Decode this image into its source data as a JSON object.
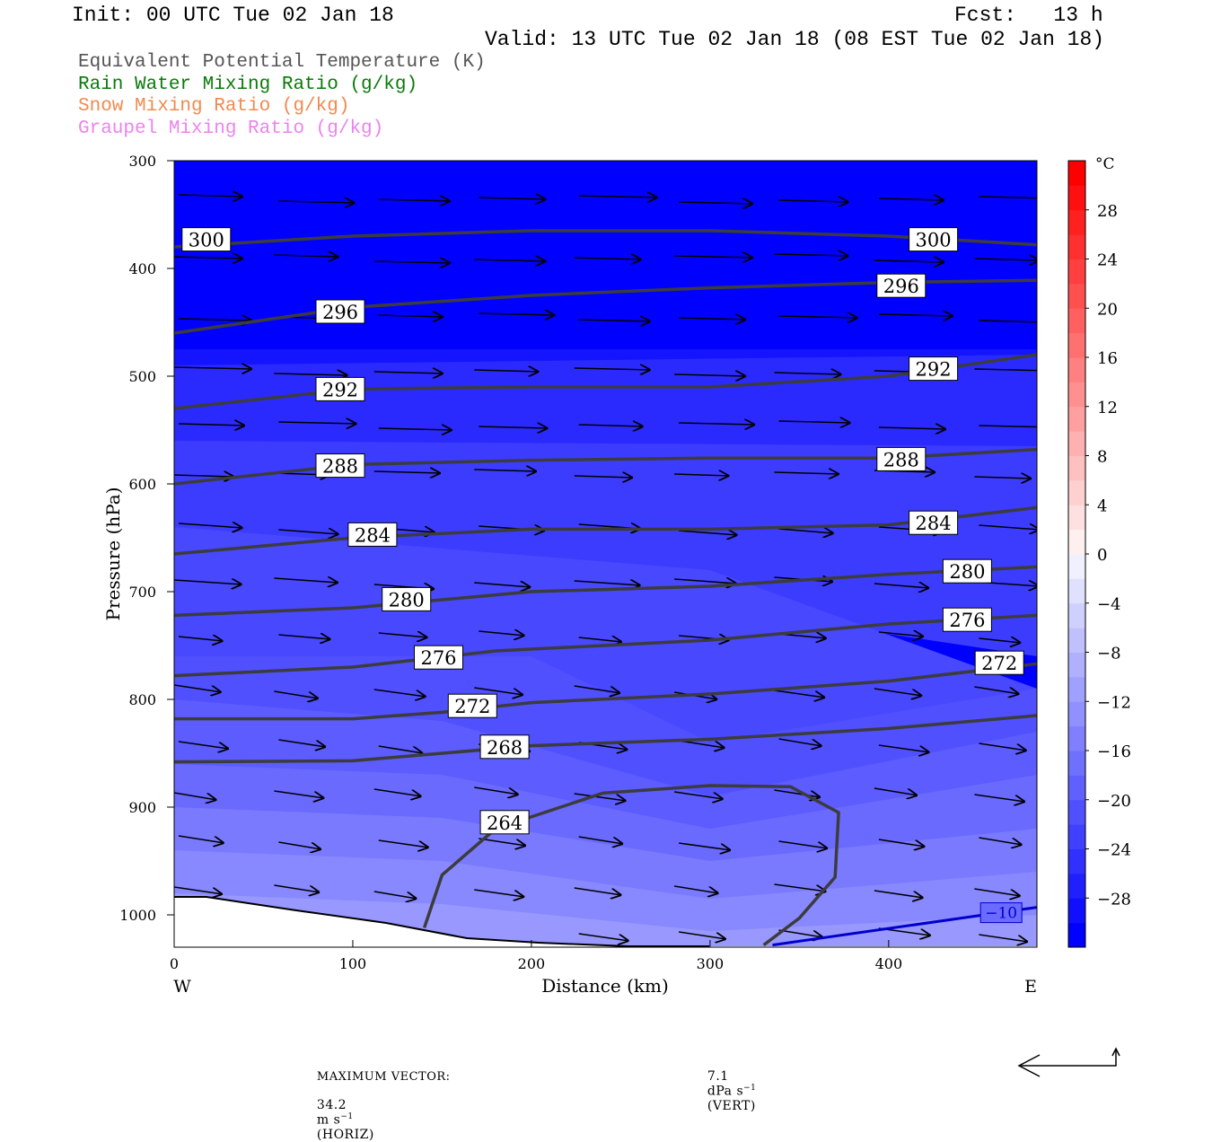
{
  "header": {
    "init": "Init: 00 UTC Tue 02 Jan 18",
    "fcst": "Fcst:   13 h",
    "valid": "Valid: 13 UTC Tue 02 Jan 18 (08 EST Tue 02 Jan 18)"
  },
  "legend": [
    {
      "label": "Equivalent Potential Temperature (K)",
      "color": "#555555"
    },
    {
      "label": "Rain Water Mixing Ratio (g/kg)",
      "color": "#0a7a0a"
    },
    {
      "label": "Snow Mixing Ratio (g/kg)",
      "color": "#f08a50"
    },
    {
      "label": "Graupel Mixing Ratio (g/kg)",
      "color": "#ee82ee"
    }
  ],
  "chart_data": {
    "type": "cross-section",
    "xlabel": "Distance (km)",
    "ylabel": "Pressure (hPa)",
    "xlim": [
      0,
      483
    ],
    "ylim": [
      1030,
      300
    ],
    "x_ticks": [
      0,
      100,
      200,
      300,
      400
    ],
    "y_ticks": [
      300,
      400,
      500,
      600,
      700,
      800,
      900,
      1000
    ],
    "x_end_labels": {
      "left": "W",
      "right": "E"
    },
    "colorbar": {
      "unit": "°C",
      "tick_labels": [
        "28",
        "24",
        "20",
        "16",
        "12",
        "8",
        "4",
        "0",
        "−4",
        "−8",
        "−12",
        "−16",
        "−20",
        "−24",
        "−28"
      ],
      "levels": [
        -32,
        -30,
        -28,
        -26,
        -24,
        -22,
        -20,
        -18,
        -16,
        -14,
        -12,
        -10,
        -8,
        -6,
        -4,
        -2,
        0,
        2,
        4,
        6,
        8,
        10,
        12,
        14,
        16,
        18,
        20,
        22,
        24,
        26,
        28,
        30,
        32
      ],
      "colors": [
        "#0000ff",
        "#1010ff",
        "#2020ff",
        "#3030ff",
        "#4040ff",
        "#5050ff",
        "#6060ff",
        "#7070ff",
        "#8080ff",
        "#9090ff",
        "#a0a0ff",
        "#b0b0ff",
        "#c0c0ff",
        "#d0d0ff",
        "#e0e0ff",
        "#f0f0ff",
        "#fff0f0",
        "#ffe0e0",
        "#ffd0d0",
        "#ffc0c0",
        "#ffb0b0",
        "#ffa0a0",
        "#ff9090",
        "#ff8080",
        "#ff7070",
        "#ff6060",
        "#ff5050",
        "#ff4040",
        "#ff3030",
        "#ff2020",
        "#ff1010",
        "#ff0000"
      ]
    },
    "temperature_bands": [
      {
        "value": -30,
        "color": "#0000ff",
        "pts": [
          [
            0,
            300
          ],
          [
            483,
            300
          ],
          [
            483,
            545
          ],
          [
            0,
            545
          ]
        ]
      },
      {
        "value": -28,
        "color": "#1414ff",
        "pts": [
          [
            0,
            475
          ],
          [
            483,
            475
          ],
          [
            483,
            545
          ],
          [
            0,
            545
          ]
        ]
      },
      {
        "value": -26,
        "color": "#2a2aff",
        "pts": [
          [
            0,
            490
          ],
          [
            483,
            480
          ],
          [
            483,
            580
          ],
          [
            0,
            580
          ]
        ]
      },
      {
        "value": -24,
        "color": "#3c3cff",
        "pts": [
          [
            0,
            560
          ],
          [
            483,
            565
          ],
          [
            483,
            760
          ],
          [
            0,
            640
          ]
        ]
      },
      {
        "value": -22,
        "color": "#4848ff",
        "pts": [
          [
            0,
            640
          ],
          [
            300,
            680
          ],
          [
            483,
            790
          ],
          [
            483,
            1030
          ],
          [
            0,
            1030
          ]
        ]
      },
      {
        "value": -20,
        "color": "#5050ff",
        "pts": [
          [
            0,
            760
          ],
          [
            200,
            760
          ],
          [
            300,
            840
          ],
          [
            483,
            790
          ],
          [
            483,
            1030
          ],
          [
            0,
            1030
          ]
        ]
      },
      {
        "value": -18,
        "color": "#5c5cff",
        "pts": [
          [
            0,
            800
          ],
          [
            150,
            820
          ],
          [
            300,
            890
          ],
          [
            483,
            830
          ],
          [
            483,
            1030
          ],
          [
            0,
            1030
          ]
        ]
      },
      {
        "value": -16,
        "color": "#6a6aff",
        "pts": [
          [
            0,
            860
          ],
          [
            150,
            870
          ],
          [
            300,
            920
          ],
          [
            483,
            870
          ],
          [
            483,
            1030
          ],
          [
            0,
            1030
          ]
        ]
      },
      {
        "value": -14,
        "color": "#7a7aff",
        "pts": [
          [
            0,
            900
          ],
          [
            150,
            910
          ],
          [
            300,
            950
          ],
          [
            483,
            920
          ],
          [
            483,
            1030
          ],
          [
            0,
            1030
          ]
        ]
      },
      {
        "value": -12,
        "color": "#8888ff",
        "pts": [
          [
            0,
            940
          ],
          [
            150,
            950
          ],
          [
            300,
            985
          ],
          [
            483,
            960
          ],
          [
            483,
            1030
          ],
          [
            0,
            1030
          ]
        ]
      },
      {
        "value": -10,
        "color": "#9898ff",
        "pts": [
          [
            0,
            980
          ],
          [
            150,
            990
          ],
          [
            300,
            1015
          ],
          [
            483,
            1000
          ],
          [
            483,
            1030
          ],
          [
            0,
            1030
          ]
        ]
      }
    ],
    "theta_e_contours": [
      {
        "level": 300,
        "label_at": [
          [
            18,
            373
          ],
          [
            425,
            373
          ]
        ],
        "pts": [
          [
            0,
            380
          ],
          [
            100,
            370
          ],
          [
            200,
            365
          ],
          [
            300,
            365
          ],
          [
            400,
            370
          ],
          [
            483,
            378
          ]
        ]
      },
      {
        "level": 296,
        "label_at": [
          [
            93,
            440
          ],
          [
            407,
            416
          ]
        ],
        "pts": [
          [
            0,
            460
          ],
          [
            100,
            436
          ],
          [
            200,
            425
          ],
          [
            300,
            418
          ],
          [
            400,
            413
          ],
          [
            483,
            411
          ]
        ]
      },
      {
        "level": 292,
        "label_at": [
          [
            93,
            512
          ],
          [
            425,
            493
          ]
        ],
        "pts": [
          [
            0,
            530
          ],
          [
            100,
            512
          ],
          [
            200,
            510
          ],
          [
            300,
            510
          ],
          [
            400,
            500
          ],
          [
            483,
            480
          ]
        ]
      },
      {
        "level": 288,
        "label_at": [
          [
            93,
            583
          ],
          [
            407,
            577
          ]
        ],
        "pts": [
          [
            0,
            600
          ],
          [
            100,
            582
          ],
          [
            200,
            578
          ],
          [
            300,
            576
          ],
          [
            400,
            576
          ],
          [
            483,
            568
          ]
        ]
      },
      {
        "level": 284,
        "label_at": [
          [
            111,
            647
          ],
          [
            425,
            636
          ]
        ],
        "pts": [
          [
            0,
            665
          ],
          [
            100,
            650
          ],
          [
            200,
            642
          ],
          [
            300,
            642
          ],
          [
            400,
            638
          ],
          [
            483,
            622
          ]
        ]
      },
      {
        "level": 280,
        "label_at": [
          [
            130,
            707
          ],
          [
            444,
            681
          ]
        ],
        "pts": [
          [
            0,
            722
          ],
          [
            100,
            715
          ],
          [
            200,
            700
          ],
          [
            300,
            695
          ],
          [
            400,
            684
          ],
          [
            483,
            677
          ]
        ]
      },
      {
        "level": 276,
        "label_at": [
          [
            148,
            761
          ],
          [
            444,
            726
          ]
        ],
        "pts": [
          [
            0,
            778
          ],
          [
            100,
            770
          ],
          [
            180,
            755
          ],
          [
            300,
            745
          ],
          [
            400,
            730
          ],
          [
            483,
            722
          ]
        ]
      },
      {
        "level": 272,
        "label_at": [
          [
            167,
            806
          ],
          [
            462,
            766
          ]
        ],
        "pts": [
          [
            0,
            818
          ],
          [
            100,
            818
          ],
          [
            150,
            812
          ],
          [
            200,
            803
          ],
          [
            300,
            795
          ],
          [
            400,
            783
          ],
          [
            483,
            767
          ]
        ]
      },
      {
        "level": 268,
        "label_at": [
          [
            185,
            844
          ]
        ],
        "pts": [
          [
            0,
            858
          ],
          [
            100,
            857
          ],
          [
            200,
            843
          ],
          [
            300,
            837
          ],
          [
            400,
            827
          ],
          [
            483,
            815
          ]
        ]
      },
      {
        "level": 264,
        "label_at": [
          [
            185,
            914
          ]
        ],
        "pts": [
          [
            140,
            1012
          ],
          [
            150,
            963
          ],
          [
            180,
            920
          ],
          [
            240,
            887
          ],
          [
            300,
            880
          ],
          [
            345,
            881
          ],
          [
            372,
            905
          ],
          [
            370,
            965
          ],
          [
            350,
            1003
          ],
          [
            330,
            1028
          ]
        ]
      }
    ],
    "temperature_contour_labels": [
      {
        "label": "−10",
        "at": [
          463,
          998
        ],
        "pts": [
          [
            335,
            1028
          ],
          [
            483,
            993
          ]
        ]
      }
    ],
    "max_vector": {
      "horiz": "34.2",
      "horiz_unit": "m s",
      "horiz_kind": "(HORIZ)",
      "vert": "7.1",
      "vert_unit": "dPa s",
      "vert_kind": "(VERT)",
      "exponent": "−1",
      "label": "MAXIMUM VECTOR:"
    }
  }
}
